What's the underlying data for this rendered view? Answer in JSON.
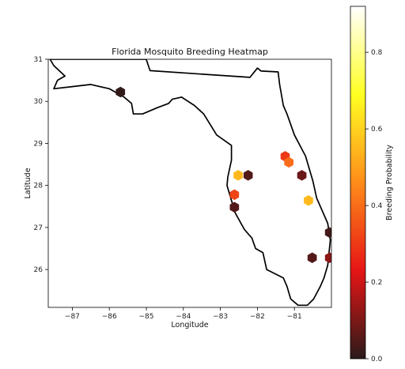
{
  "chart_data": {
    "type": "heatmap",
    "subtype": "hexbin-on-map",
    "title": "Florida Mosquito Breeding Heatmap",
    "xlabel": "Longitude",
    "ylabel": "Latitude",
    "xlim": [
      -87.65,
      -80.0
    ],
    "ylim": [
      25.1,
      31.0
    ],
    "xticks": [
      -87,
      -86,
      -85,
      -84,
      -83,
      -82,
      -81
    ],
    "yticks": [
      26,
      27,
      28,
      29,
      30,
      31
    ],
    "grid": false,
    "colorbar": {
      "label": "Breeding Probability",
      "range": [
        0.0,
        0.92
      ],
      "ticks": [
        0.0,
        0.2,
        0.4,
        0.6,
        0.8
      ],
      "colormap": "hot",
      "colors": [
        "#2a1a1a",
        "#e61515",
        "#ff8c1a",
        "#ffff22",
        "#ffffff"
      ]
    },
    "outline_color": "#000000",
    "points": [
      {
        "lon": -85.7,
        "lat": 30.22,
        "value": 0.01
      },
      {
        "lon": -82.52,
        "lat": 28.24,
        "value": 0.55
      },
      {
        "lon": -82.25,
        "lat": 28.24,
        "value": 0.05
      },
      {
        "lon": -81.25,
        "lat": 28.69,
        "value": 0.3
      },
      {
        "lon": -81.15,
        "lat": 28.55,
        "value": 0.4
      },
      {
        "lon": -80.8,
        "lat": 28.24,
        "value": 0.08
      },
      {
        "lon": -82.62,
        "lat": 27.78,
        "value": 0.32
      },
      {
        "lon": -82.62,
        "lat": 27.48,
        "value": 0.05
      },
      {
        "lon": -80.62,
        "lat": 27.64,
        "value": 0.55
      },
      {
        "lon": -80.05,
        "lat": 26.88,
        "value": 0.03
      },
      {
        "lon": -80.52,
        "lat": 26.28,
        "value": 0.05
      },
      {
        "lon": -80.05,
        "lat": 26.28,
        "value": 0.12
      }
    ],
    "outline": [
      [
        -87.6,
        31.0
      ],
      [
        -85.0,
        31.0
      ],
      [
        -85.0,
        30.99
      ],
      [
        -84.9,
        30.73
      ],
      [
        -82.2,
        30.57
      ],
      [
        -82.0,
        30.79
      ],
      [
        -81.9,
        30.72
      ],
      [
        -81.44,
        30.7
      ],
      [
        -81.4,
        30.4
      ],
      [
        -81.3,
        29.9
      ],
      [
        -81.2,
        29.7
      ],
      [
        -81.0,
        29.2
      ],
      [
        -80.7,
        28.7
      ],
      [
        -80.5,
        28.1
      ],
      [
        -80.4,
        27.7
      ],
      [
        -80.1,
        27.1
      ],
      [
        -80.03,
        26.7
      ],
      [
        -80.1,
        26.1
      ],
      [
        -80.2,
        25.8
      ],
      [
        -80.3,
        25.6
      ],
      [
        -80.48,
        25.3
      ],
      [
        -80.65,
        25.15
      ],
      [
        -80.9,
        25.15
      ],
      [
        -81.1,
        25.3
      ],
      [
        -81.2,
        25.6
      ],
      [
        -81.3,
        25.8
      ],
      [
        -81.75,
        26.0
      ],
      [
        -81.85,
        26.4
      ],
      [
        -82.05,
        26.5
      ],
      [
        -82.15,
        26.75
      ],
      [
        -82.35,
        26.95
      ],
      [
        -82.6,
        27.35
      ],
      [
        -82.72,
        27.7
      ],
      [
        -82.82,
        28.0
      ],
      [
        -82.8,
        28.2
      ],
      [
        -82.7,
        28.6
      ],
      [
        -82.7,
        28.95
      ],
      [
        -83.1,
        29.2
      ],
      [
        -83.45,
        29.7
      ],
      [
        -83.7,
        29.9
      ],
      [
        -84.05,
        30.1
      ],
      [
        -84.3,
        30.05
      ],
      [
        -84.4,
        29.95
      ],
      [
        -84.7,
        29.85
      ],
      [
        -85.1,
        29.7
      ],
      [
        -85.35,
        29.7
      ],
      [
        -85.4,
        29.95
      ],
      [
        -85.6,
        30.1
      ],
      [
        -86.0,
        30.3
      ],
      [
        -86.5,
        30.4
      ],
      [
        -87.0,
        30.35
      ],
      [
        -87.5,
        30.3
      ],
      [
        -87.4,
        30.5
      ],
      [
        -87.2,
        30.6
      ],
      [
        -87.5,
        30.85
      ],
      [
        -87.6,
        31.0
      ]
    ]
  }
}
